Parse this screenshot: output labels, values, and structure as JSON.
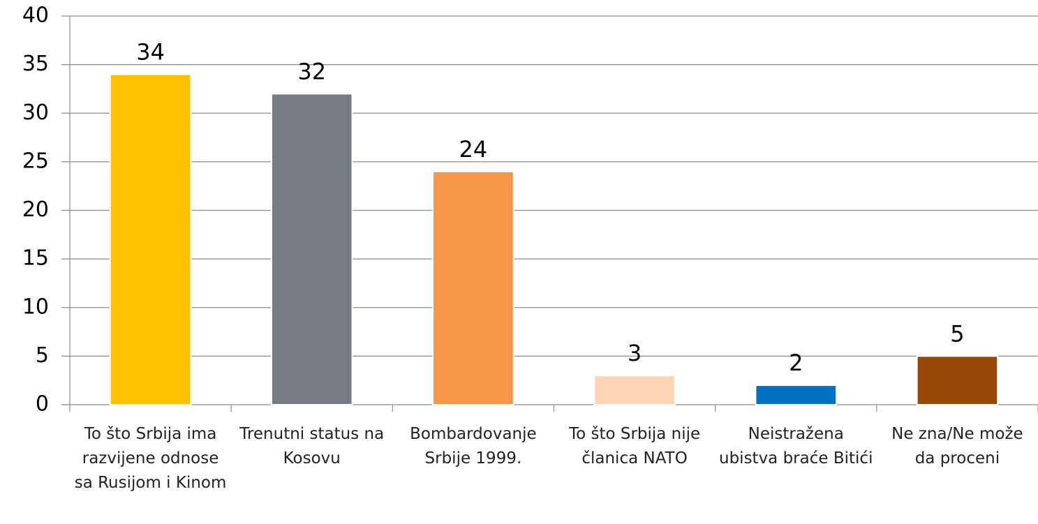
{
  "chart_data": {
    "type": "bar",
    "categories": [
      "To što Srbija ima razvijene odnose sa Rusijom i Kinom",
      "Trenutni status na Kosovu",
      "Bombardovanje Srbije 1999.",
      "To što Srbija nije članica NATO",
      "Neistražena ubistva braće Bitići",
      "Ne zna/Ne može da proceni"
    ],
    "values": [
      34,
      32,
      24,
      3,
      2,
      5
    ],
    "colors": [
      "#FFC000",
      "#767B84",
      "#F79646",
      "#FBD5B5",
      "#0070C0",
      "#974706"
    ],
    "ylim": [
      0,
      40
    ],
    "yticks": [
      0,
      5,
      10,
      15,
      20,
      25,
      30,
      35,
      40
    ],
    "grid": true
  }
}
